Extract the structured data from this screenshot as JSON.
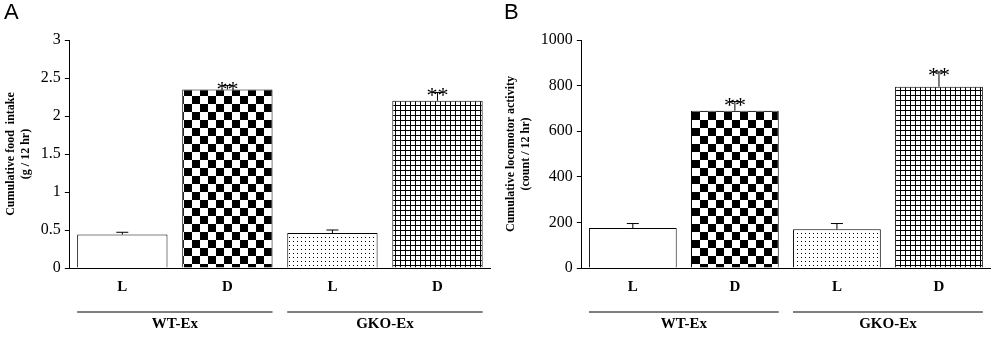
{
  "chart_data": [
    {
      "type": "bar",
      "title": "A",
      "y_label": [
        "Cumulative food  intake",
        "(g / 12 hr)"
      ],
      "categories": [
        "L",
        "D",
        "L",
        "D"
      ],
      "group_labels": [
        "WT-Ex",
        "GKO-Ex"
      ],
      "values": [
        0.44,
        2.35,
        0.46,
        2.2
      ],
      "errors": [
        0.03,
        0.05,
        0.04,
        0.11
      ],
      "annotations": [
        null,
        "**",
        null,
        "**"
      ],
      "colors": [
        "#ffffff",
        "#000000",
        "#000000",
        "#000000"
      ],
      "ylim": [
        0,
        3
      ],
      "yticks": [
        0,
        0.5,
        1,
        1.5,
        2,
        2.5,
        3
      ],
      "grid": false
    },
    {
      "type": "bar",
      "title": "B",
      "y_label": [
        "Cumulative locomotor activity",
        "(count / 12 hr)"
      ],
      "categories": [
        "L",
        "D",
        "L",
        "D"
      ],
      "group_labels": [
        "WT-Ex",
        "GKO-Ex"
      ],
      "values": [
        175,
        690,
        170,
        795
      ],
      "errors": [
        20,
        40,
        25,
        65
      ],
      "annotations": [
        null,
        "**",
        null,
        "**"
      ],
      "colors": [
        "#ffffff",
        "#000000",
        "#000000",
        "#000000"
      ],
      "ylim": [
        0,
        1000
      ],
      "yticks": [
        0,
        200,
        400,
        600,
        800,
        1000
      ],
      "grid": false
    }
  ]
}
